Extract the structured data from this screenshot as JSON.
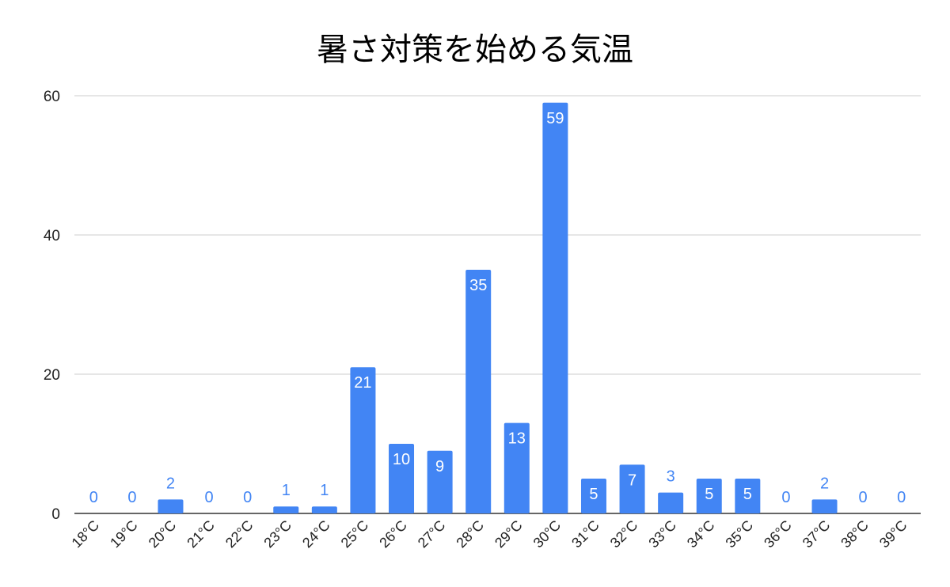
{
  "chart_data": {
    "type": "bar",
    "title": "暑さ対策を始める気温",
    "xlabel": "",
    "ylabel": "",
    "categories": [
      "18°C",
      "19°C",
      "20°C",
      "21°C",
      "22°C",
      "23°C",
      "24°C",
      "25°C",
      "26°C",
      "27°C",
      "28°C",
      "29°C",
      "30°C",
      "31°C",
      "32°C",
      "33°C",
      "34°C",
      "35°C",
      "36°C",
      "37°C",
      "38°C",
      "39°C"
    ],
    "values": [
      0,
      0,
      2,
      0,
      0,
      1,
      1,
      21,
      10,
      9,
      35,
      13,
      59,
      5,
      7,
      3,
      5,
      5,
      0,
      2,
      0,
      0
    ],
    "ylim": [
      0,
      60
    ],
    "yticks": [
      0,
      20,
      40,
      60
    ],
    "grid": true,
    "legend": "none",
    "colors": {
      "bar": "#4285f4",
      "label_inside": "#ffffff",
      "label_outside": "#4285f4",
      "grid": "#cccccc",
      "axis": "#333333"
    }
  }
}
